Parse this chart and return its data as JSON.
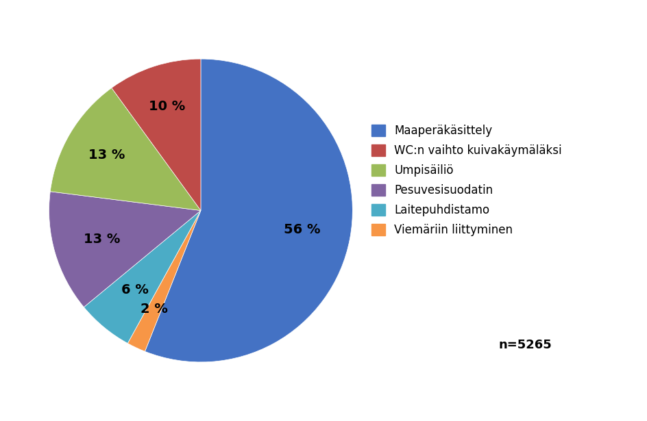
{
  "labels": [
    "Maaperäkäsittely",
    "WC:n vaihto kuivakäymäläksi",
    "Umpisäiliö",
    "Pesuvesisuodatin",
    "Laitepuhdistamo",
    "Viemäriin liittyminen"
  ],
  "values": [
    56,
    10,
    13,
    13,
    6,
    2
  ],
  "colors": [
    "#4472C4",
    "#BE4B48",
    "#9BBB59",
    "#8064A2",
    "#4BACC6",
    "#F79646"
  ],
  "pct_labels": [
    "56 %",
    "10 %",
    "13 %",
    "13 %",
    "6 %",
    "2 %"
  ],
  "n_label": "n=5265",
  "background_color": "#FFFFFF",
  "label_fontsize": 14,
  "legend_fontsize": 12,
  "n_fontsize": 13,
  "reorder": [
    0,
    1,
    2,
    3,
    4,
    5
  ],
  "pie_order_indices": [
    0,
    5,
    4,
    3,
    2,
    1
  ],
  "startangle": 90
}
